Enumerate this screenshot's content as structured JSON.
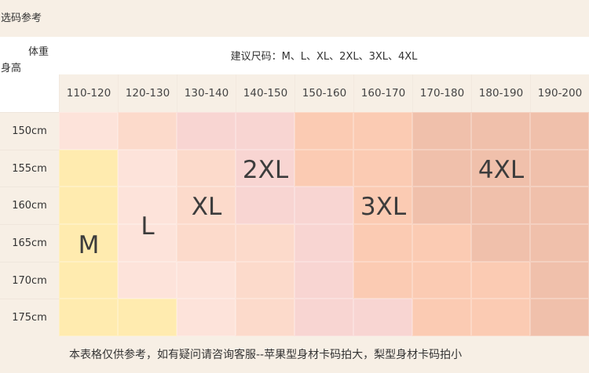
{
  "title": "选码参考",
  "axis": {
    "weight": "体重",
    "height": "身高"
  },
  "recommended": "建议尺码：M、L、XL、2XL、3XL、4XL",
  "weights": [
    "110-120",
    "120-130",
    "130-140",
    "140-150",
    "150-160",
    "160-170",
    "170-180",
    "180-190",
    "190-200"
  ],
  "heights": [
    "150cm",
    "155cm",
    "160cm",
    "165cm",
    "170cm",
    "175cm"
  ],
  "colors": {
    "A": "#fde3da",
    "B": "#fcdacb",
    "C": "#f8d5d2",
    "D": "#fbcbb3",
    "E": "#f0c0ab",
    "Y": "#ffebaf"
  },
  "grid": [
    [
      "A",
      "B",
      "C",
      "C",
      "D",
      "D",
      "E",
      "E",
      "E"
    ],
    [
      "Y",
      "A",
      "B",
      "C",
      "D",
      "D",
      "E",
      "E",
      "E"
    ],
    [
      "Y",
      "A",
      "B",
      "C",
      "C",
      "D",
      "E",
      "E",
      "E"
    ],
    [
      "Y",
      "A",
      "B",
      "B",
      "C",
      "D",
      "D",
      "E",
      "E"
    ],
    [
      "Y",
      "A",
      "A",
      "B",
      "C",
      "D",
      "D",
      "D",
      "E"
    ],
    [
      "Y",
      "Y",
      "A",
      "B",
      "C",
      "C",
      "D",
      "D",
      "E"
    ]
  ],
  "size_labels": [
    "M",
    "L",
    "XL",
    "2XL",
    "3XL",
    "4XL"
  ],
  "footnote": "本表格仅供参考，如有疑问请咨询客服--苹果型身材卡码拍大，梨型身材卡码拍小"
}
